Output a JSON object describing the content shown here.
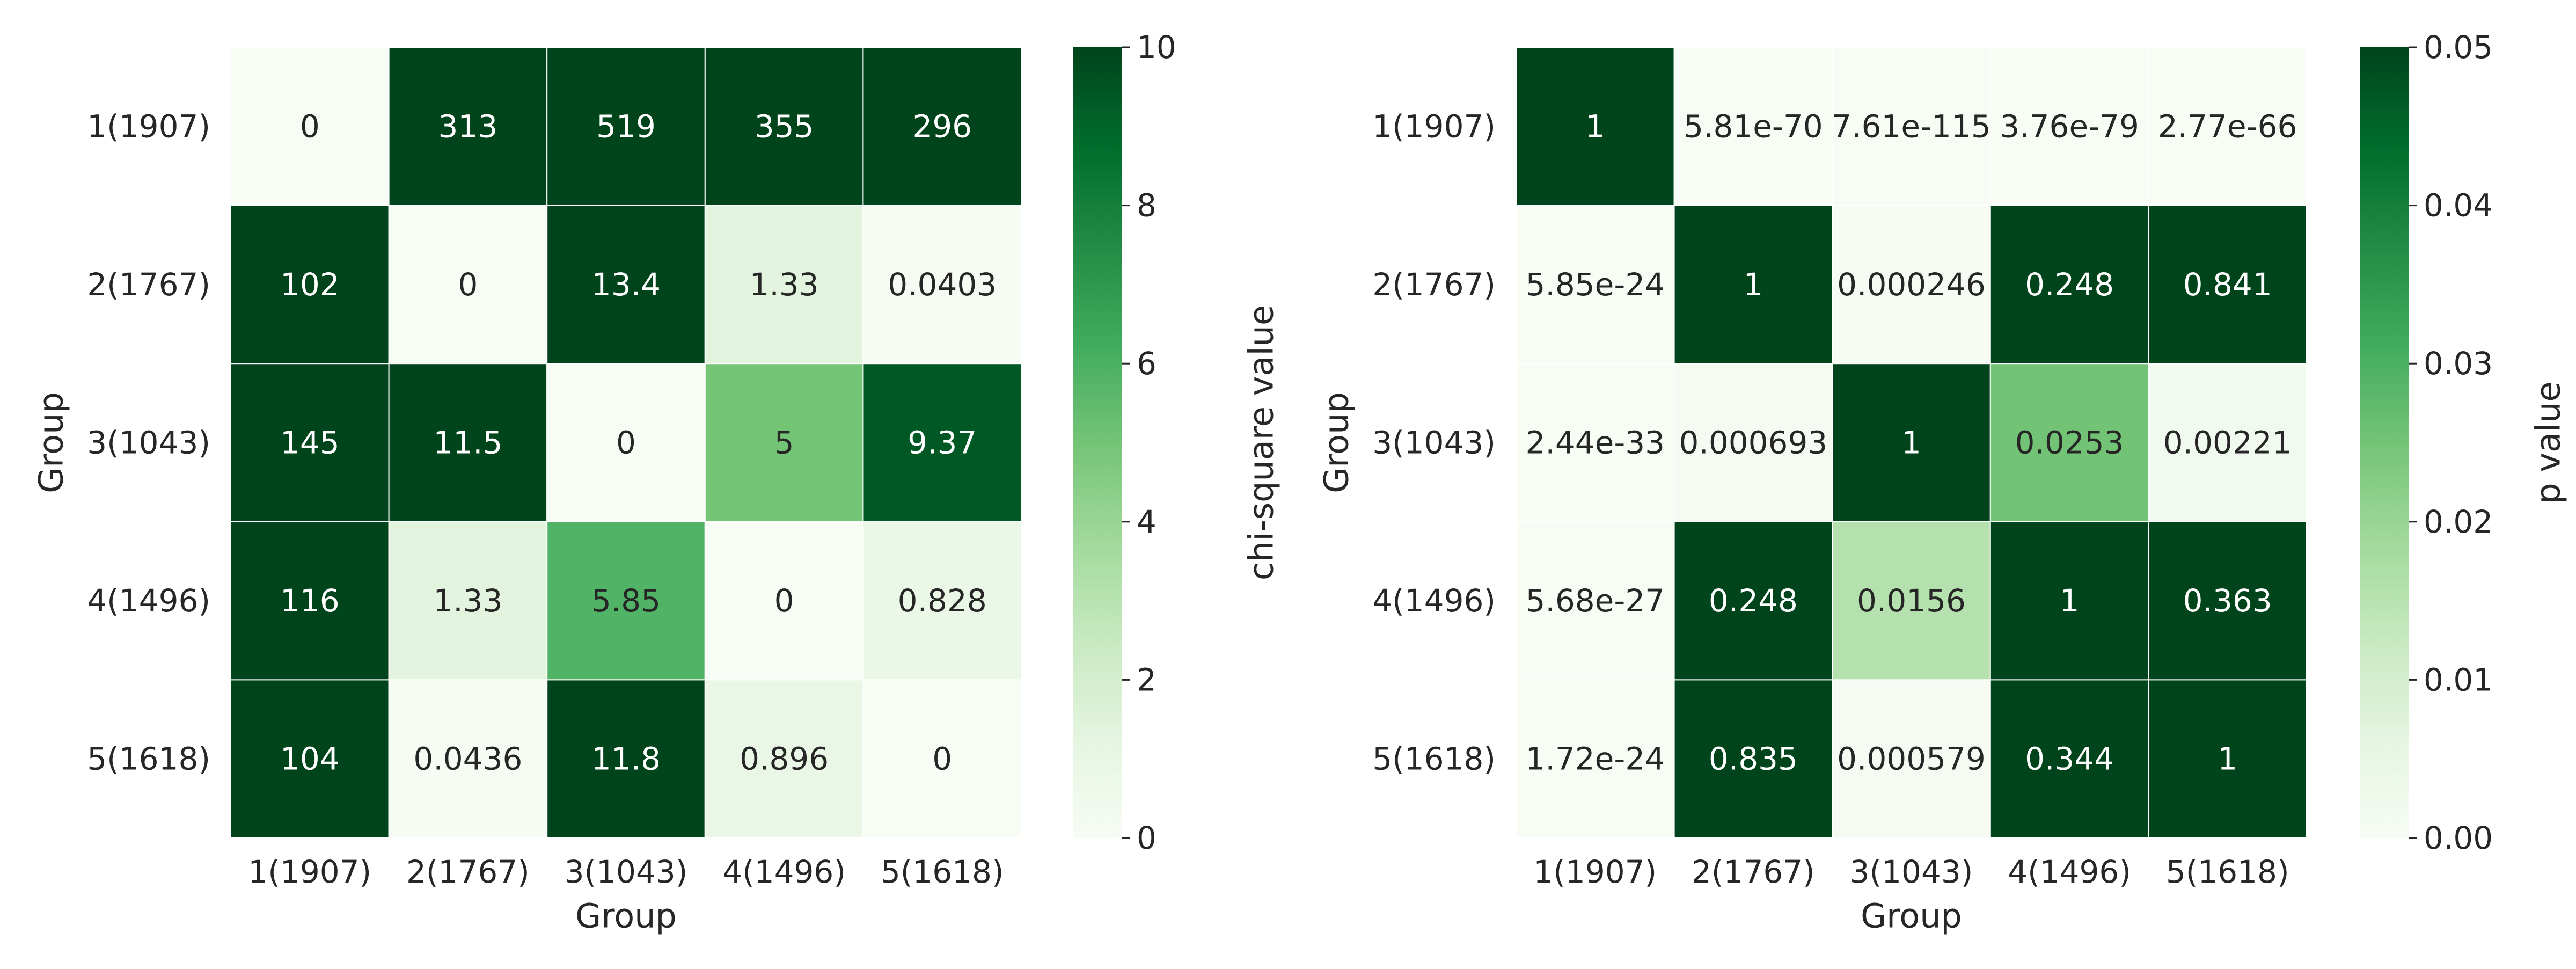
{
  "chart_data": [
    {
      "type": "heatmap",
      "title": "",
      "xlabel": "Group",
      "ylabel": "Group",
      "x_categories": [
        "1(1907)",
        "2(1767)",
        "3(1043)",
        "4(1496)",
        "5(1618)"
      ],
      "y_categories": [
        "1(1907)",
        "2(1767)",
        "3(1043)",
        "4(1496)",
        "5(1618)"
      ],
      "values": [
        [
          0,
          313,
          519,
          355,
          296
        ],
        [
          102,
          0,
          13.4,
          1.33,
          0.0403
        ],
        [
          145,
          11.5,
          0,
          5,
          9.37
        ],
        [
          116,
          1.33,
          5.85,
          0,
          0.828
        ],
        [
          104,
          0.0436,
          11.8,
          0.896,
          0
        ]
      ],
      "cell_labels": [
        [
          "0",
          "313",
          "519",
          "355",
          "296"
        ],
        [
          "102",
          "0",
          "13.4",
          "1.33",
          "0.0403"
        ],
        [
          "145",
          "11.5",
          "0",
          "5",
          "9.37"
        ],
        [
          "116",
          "1.33",
          "5.85",
          "0",
          "0.828"
        ],
        [
          "104",
          "0.0436",
          "11.8",
          "0.896",
          "0"
        ]
      ],
      "colorbar": {
        "label": "chi-square value",
        "range": [
          0,
          10
        ],
        "ticks": [
          0,
          2,
          4,
          6,
          8,
          10
        ],
        "tick_labels": [
          "0",
          "2",
          "4",
          "6",
          "8",
          "10"
        ]
      },
      "colormap": "Greens"
    },
    {
      "type": "heatmap",
      "title": "",
      "xlabel": "Group",
      "ylabel": "Group",
      "x_categories": [
        "1(1907)",
        "2(1767)",
        "3(1043)",
        "4(1496)",
        "5(1618)"
      ],
      "y_categories": [
        "1(1907)",
        "2(1767)",
        "3(1043)",
        "4(1496)",
        "5(1618)"
      ],
      "values": [
        [
          1,
          5.81e-70,
          7.61e-115,
          3.76e-79,
          2.77e-66
        ],
        [
          5.85e-24,
          1,
          0.000246,
          0.248,
          0.841
        ],
        [
          2.44e-33,
          0.000693,
          1,
          0.0253,
          0.00221
        ],
        [
          5.68e-27,
          0.248,
          0.0156,
          1,
          0.363
        ],
        [
          1.72e-24,
          0.835,
          0.000579,
          0.344,
          1
        ]
      ],
      "cell_labels": [
        [
          "1",
          "5.81e-70",
          "7.61e-115",
          "3.76e-79",
          "2.77e-66"
        ],
        [
          "5.85e-24",
          "1",
          "0.000246",
          "0.248",
          "0.841"
        ],
        [
          "2.44e-33",
          "0.000693",
          "1",
          "0.0253",
          "0.00221"
        ],
        [
          "5.68e-27",
          "0.248",
          "0.0156",
          "1",
          "0.363"
        ],
        [
          "1.72e-24",
          "0.835",
          "0.000579",
          "0.344",
          "1"
        ]
      ],
      "colorbar": {
        "label": "p value",
        "range": [
          0,
          0.05
        ],
        "ticks": [
          0,
          0.01,
          0.02,
          0.03,
          0.04,
          0.05
        ],
        "tick_labels": [
          "0.00",
          "0.01",
          "0.02",
          "0.03",
          "0.04",
          "0.05"
        ]
      },
      "colormap": "Greens"
    }
  ]
}
